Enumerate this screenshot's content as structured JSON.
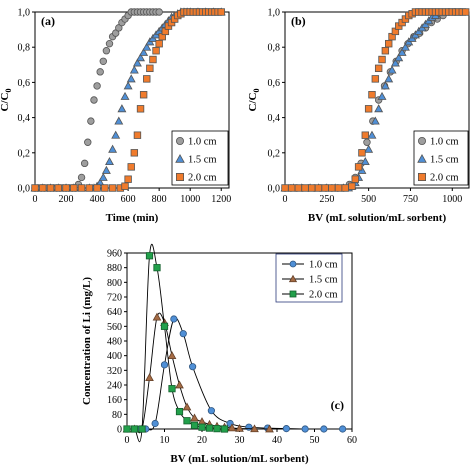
{
  "colors": {
    "gray": "#9e9e9e",
    "blue": "#4f8fd6",
    "orange": "#f07b2c",
    "green": "#22a04b",
    "brown": "#a56b44",
    "legend_border": "#2b3a7a"
  },
  "chart_data": [
    {
      "type": "scatter",
      "panel_label": "(a)",
      "xlabel": "Time (min)",
      "ylabel": "C/C0",
      "ylabel_main": "C/C",
      "ylabel_sub": "0",
      "xlim": [
        0,
        1250
      ],
      "ylim": [
        0,
        1.0
      ],
      "xticks": [
        0,
        200,
        400,
        600,
        800,
        1000,
        1200
      ],
      "yticks": [
        "0,0",
        "0,2",
        "0,4",
        "0,6",
        "0,8",
        "1,0"
      ],
      "legend_position": "bottom-right",
      "series": [
        {
          "name": "1.0 cm",
          "marker": "circle",
          "color": "#9e9e9e",
          "x": [
            0,
            20,
            40,
            60,
            80,
            100,
            120,
            140,
            160,
            180,
            200,
            220,
            240,
            260,
            280,
            300,
            320,
            340,
            360,
            380,
            400,
            420,
            440,
            460,
            480,
            500,
            520,
            540,
            560,
            580,
            600,
            620,
            640,
            660,
            680,
            700,
            720,
            740,
            760,
            780,
            800
          ],
          "y": [
            0,
            0,
            0,
            0,
            0,
            0,
            0,
            0,
            0,
            0,
            0,
            0,
            0,
            0,
            0.02,
            0.06,
            0.14,
            0.26,
            0.38,
            0.5,
            0.58,
            0.66,
            0.72,
            0.78,
            0.82,
            0.86,
            0.88,
            0.91,
            0.94,
            0.96,
            0.98,
            1.0,
            1.0,
            1.0,
            1.0,
            1.0,
            1.0,
            1.0,
            1.0,
            1.0,
            1.0
          ]
        },
        {
          "name": "1.5 cm",
          "marker": "triangle",
          "color": "#4f8fd6",
          "x": [
            0,
            50,
            100,
            150,
            200,
            250,
            300,
            350,
            380,
            400,
            420,
            440,
            460,
            480,
            500,
            520,
            540,
            560,
            580,
            600,
            620,
            640,
            660,
            680,
            700,
            720,
            740,
            760,
            780,
            800,
            820,
            840,
            860,
            880,
            900,
            920,
            940,
            960,
            980,
            1000,
            1050,
            1100,
            1150,
            1200
          ],
          "y": [
            0,
            0,
            0,
            0,
            0,
            0,
            0,
            0,
            0,
            0.01,
            0.03,
            0.06,
            0.1,
            0.15,
            0.22,
            0.3,
            0.38,
            0.45,
            0.52,
            0.58,
            0.62,
            0.67,
            0.71,
            0.74,
            0.77,
            0.8,
            0.83,
            0.85,
            0.87,
            0.89,
            0.91,
            0.93,
            0.95,
            0.97,
            0.98,
            0.99,
            1.0,
            1.0,
            1.0,
            1.0,
            1.0,
            1.0,
            1.0,
            1.0
          ]
        },
        {
          "name": "2.0 cm",
          "marker": "square",
          "color": "#f07b2c",
          "x": [
            0,
            50,
            100,
            150,
            200,
            250,
            300,
            350,
            400,
            450,
            500,
            550,
            580,
            600,
            620,
            640,
            660,
            680,
            700,
            720,
            740,
            760,
            780,
            800,
            820,
            840,
            860,
            880,
            900,
            920,
            940,
            960,
            980,
            1000,
            1020,
            1040,
            1060,
            1080,
            1100,
            1120,
            1140,
            1160,
            1180,
            1200
          ],
          "y": [
            0,
            0,
            0,
            0,
            0,
            0,
            0,
            0,
            0,
            0,
            0,
            0,
            0.01,
            0.05,
            0.12,
            0.2,
            0.3,
            0.45,
            0.53,
            0.62,
            0.68,
            0.73,
            0.78,
            0.82,
            0.86,
            0.89,
            0.92,
            0.94,
            0.96,
            0.98,
            0.99,
            1.0,
            1.0,
            1.0,
            1.0,
            1.0,
            1.0,
            1.0,
            1.0,
            1.0,
            1.0,
            1.0,
            1.0,
            1.0
          ]
        }
      ]
    },
    {
      "type": "scatter",
      "panel_label": "(b)",
      "xlabel": "BV (mL solution/mL sorbent)",
      "ylabel": "C/C0",
      "ylabel_main": "C/C",
      "ylabel_sub": "0",
      "xlim": [
        0,
        1100
      ],
      "ylim": [
        0,
        1.0
      ],
      "xticks": [
        0,
        250,
        500,
        750,
        1000
      ],
      "yticks": [
        "0,0",
        "0,2",
        "0,4",
        "0,6",
        "0,8",
        "1,0"
      ],
      "legend_position": "bottom-right",
      "series": [
        {
          "name": "1.0 cm",
          "marker": "circle",
          "color": "#9e9e9e",
          "x": [
            0,
            35,
            70,
            105,
            140,
            175,
            210,
            245,
            280,
            315,
            350,
            385,
            420,
            455,
            490,
            525,
            560,
            595,
            630,
            665,
            700,
            735,
            770,
            805,
            840,
            875,
            910,
            945,
            980,
            1015,
            1050
          ],
          "y": [
            0,
            0,
            0,
            0,
            0,
            0,
            0,
            0,
            0,
            0,
            0,
            0.02,
            0.06,
            0.14,
            0.26,
            0.38,
            0.5,
            0.58,
            0.66,
            0.72,
            0.78,
            0.82,
            0.86,
            0.88,
            0.91,
            0.94,
            0.96,
            0.98,
            1.0,
            1.0,
            1.0
          ]
        },
        {
          "name": "1.5 cm",
          "marker": "triangle",
          "color": "#4f8fd6",
          "x": [
            0,
            50,
            100,
            150,
            200,
            250,
            300,
            350,
            380,
            400,
            420,
            440,
            460,
            480,
            500,
            520,
            540,
            560,
            580,
            600,
            620,
            640,
            660,
            680,
            700,
            720,
            740,
            760,
            780,
            800,
            820,
            840,
            860,
            880,
            900
          ],
          "y": [
            0,
            0,
            0,
            0,
            0,
            0,
            0,
            0,
            0,
            0.01,
            0.03,
            0.06,
            0.1,
            0.15,
            0.22,
            0.3,
            0.38,
            0.45,
            0.52,
            0.58,
            0.62,
            0.67,
            0.71,
            0.74,
            0.77,
            0.8,
            0.83,
            0.85,
            0.87,
            0.89,
            0.91,
            0.93,
            0.95,
            0.97,
            0.98
          ]
        },
        {
          "name": "2.0 cm",
          "marker": "square",
          "color": "#f07b2c",
          "x": [
            0,
            40,
            80,
            120,
            160,
            200,
            240,
            280,
            320,
            360,
            400,
            420,
            440,
            460,
            480,
            500,
            520,
            540,
            560,
            580,
            600,
            620,
            640,
            660,
            680,
            700,
            720,
            740,
            760,
            780,
            800,
            820,
            840,
            860,
            880,
            900,
            920,
            940,
            960,
            980,
            1000,
            1020,
            1040,
            1060,
            1080
          ],
          "y": [
            0,
            0,
            0,
            0,
            0,
            0,
            0,
            0,
            0,
            0,
            0.01,
            0.05,
            0.12,
            0.2,
            0.3,
            0.45,
            0.53,
            0.62,
            0.68,
            0.73,
            0.78,
            0.82,
            0.86,
            0.89,
            0.92,
            0.94,
            0.96,
            0.98,
            0.99,
            1.0,
            1.0,
            1.0,
            1.0,
            1.0,
            1.0,
            1.0,
            1.0,
            1.0,
            1.0,
            1.0,
            1.0,
            1.0,
            1.0,
            1.0,
            1.0
          ]
        }
      ]
    },
    {
      "type": "line",
      "panel_label": "(c)",
      "xlabel": "BV (mL solution/mL sorbent)",
      "ylabel": "Concentration of Li (mg/L)",
      "xlim": [
        0,
        60
      ],
      "ylim": [
        0,
        960
      ],
      "xticks": [
        0,
        10,
        20,
        30,
        40,
        50,
        60
      ],
      "yticks": [
        0,
        80,
        160,
        240,
        320,
        400,
        480,
        560,
        640,
        720,
        800,
        880,
        960
      ],
      "legend_position": "top-right",
      "series": [
        {
          "name": "1.0 cm",
          "marker": "circle",
          "color": "#4f8fd6",
          "x": [
            0,
            2.5,
            5,
            7.5,
            10,
            12.5,
            15,
            17.5,
            22.5,
            27.5,
            32.5,
            37.5,
            42.5,
            47.5,
            52.5,
            57.5
          ],
          "y": [
            0,
            0,
            0,
            30,
            350,
            600,
            520,
            340,
            100,
            30,
            10,
            5,
            2,
            0,
            0,
            0
          ]
        },
        {
          "name": "1.5 cm",
          "marker": "triangle",
          "color": "#a56b44",
          "x": [
            0,
            2,
            4,
            6,
            8,
            10,
            12,
            14,
            16,
            18,
            20,
            22,
            24,
            26,
            28,
            30,
            34,
            38
          ],
          "y": [
            0,
            0,
            0,
            280,
            610,
            580,
            400,
            240,
            120,
            60,
            40,
            25,
            15,
            10,
            6,
            3,
            1,
            0
          ]
        },
        {
          "name": "2.0 cm",
          "marker": "square",
          "color": "#22a04b",
          "x": [
            0,
            2,
            4,
            6,
            8,
            10,
            12,
            14,
            16,
            18,
            20,
            22,
            24,
            26
          ],
          "y": [
            0,
            0,
            0,
            945,
            880,
            560,
            220,
            95,
            45,
            20,
            10,
            5,
            2,
            0
          ]
        }
      ]
    }
  ]
}
